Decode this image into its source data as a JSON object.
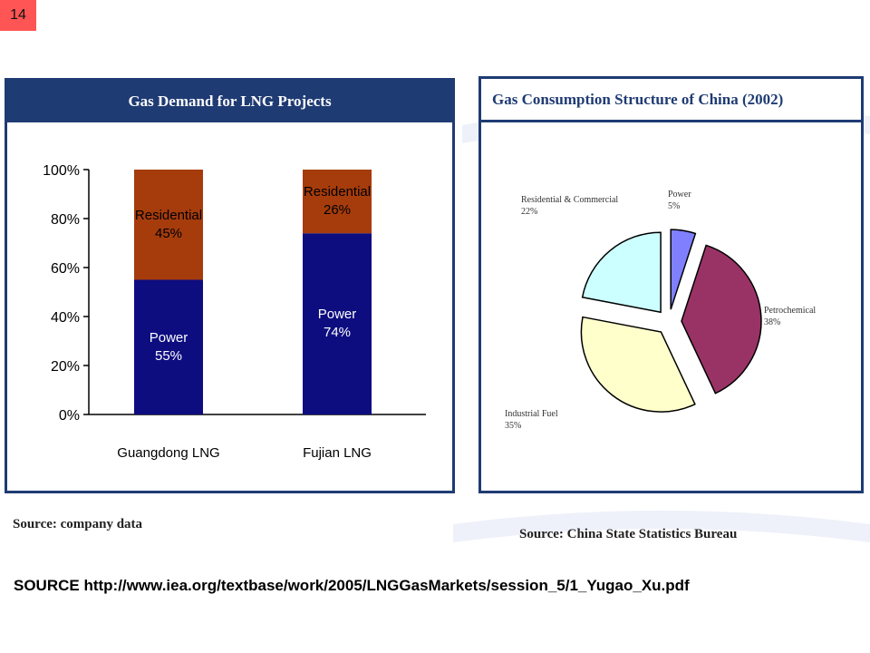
{
  "slide_number": "14",
  "colors": {
    "header_navy": "#1f3b73",
    "power_blue": "#0d0d80",
    "residential_brown": "#a63c0c"
  },
  "chart_data": [
    {
      "type": "bar",
      "stacked": true,
      "title": "Gas Demand for LNG Projects",
      "categories": [
        "Guangdong LNG",
        "Fujian LNG"
      ],
      "series": [
        {
          "name": "Power",
          "values": [
            55,
            74
          ],
          "labels": [
            "55%",
            "74%"
          ],
          "color": "#0d0d80"
        },
        {
          "name": "Residential",
          "values": [
            45,
            26
          ],
          "labels": [
            "45%",
            "26%"
          ],
          "color": "#a63c0c"
        }
      ],
      "yticks": [
        "0%",
        "20%",
        "40%",
        "60%",
        "80%",
        "100%"
      ],
      "ylim": [
        0,
        100
      ]
    },
    {
      "type": "pie",
      "title": "Gas Consumption Structure of China (2002)",
      "slices": [
        {
          "name": "Power",
          "value": 5,
          "label": "5%",
          "color": "#8080ff"
        },
        {
          "name": "Petrochemical",
          "value": 38,
          "label": "38%",
          "color": "#993366"
        },
        {
          "name": "Industrial Fuel",
          "value": 35,
          "label": "35%",
          "color": "#ffffcc"
        },
        {
          "name": "Residential & Commercial",
          "value": 22,
          "label": "22%",
          "color": "#ccffff"
        }
      ]
    }
  ],
  "sources": {
    "left": "Source: company data",
    "right": "Source: China State Statistics Bureau",
    "url_line": "SOURCE  http://www.iea.org/textbase/work/2005/LNGGasMarkets/session_5/1_Yugao_Xu.pdf"
  }
}
